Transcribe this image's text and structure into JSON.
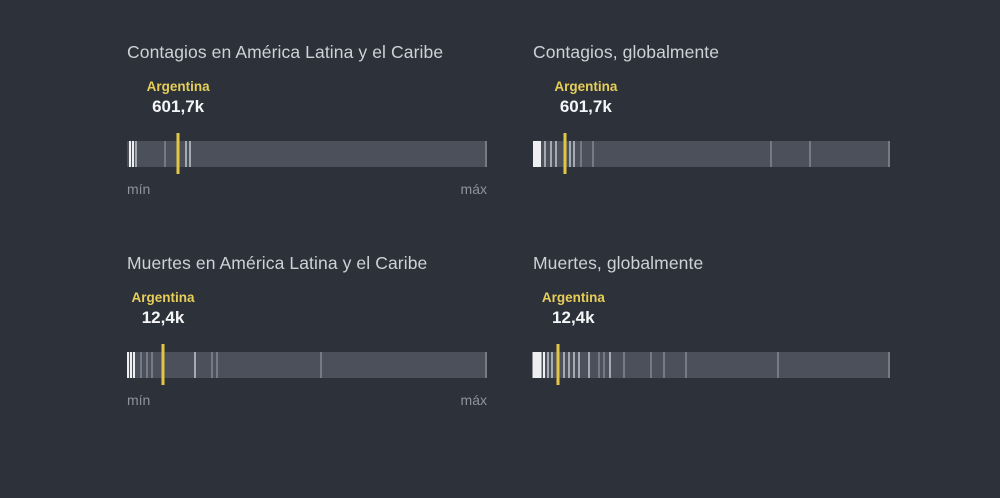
{
  "page": {
    "background_color": "#2c313a",
    "accent_color": "#e4c645",
    "strip_color": "#4b505a",
    "title_color": "#cdd2d7",
    "axis_label_color": "#8e949c"
  },
  "chart_data": [
    {
      "type": "strip",
      "title": "Contagios en América Latina y el Caribe",
      "highlight": {
        "name": "Argentina",
        "value": "601,7k"
      },
      "marker_pct": 14.2,
      "label_center_pct": 14.2,
      "axis": {
        "min": "mín",
        "max": "máx"
      },
      "ticks": [
        [
          0.8,
          "bright",
          2
        ],
        [
          1.7,
          "bright",
          2
        ],
        [
          2.6,
          "light",
          2
        ],
        [
          10.6,
          "mid",
          2
        ],
        [
          16.4,
          "light",
          2
        ],
        [
          17.6,
          "light",
          2
        ],
        [
          99.6,
          "mid",
          2
        ]
      ]
    },
    {
      "type": "strip",
      "title": "Contagios, globalmente",
      "highlight": {
        "name": "Argentina",
        "value": "601,7k"
      },
      "marker_pct": 9.0,
      "label_center_pct": 14.8,
      "axis": null,
      "ticks": [
        [
          1.1,
          "bright",
          8
        ],
        [
          3.4,
          "light",
          2
        ],
        [
          5.0,
          "light",
          2
        ],
        [
          6.4,
          "light",
          2
        ],
        [
          10.4,
          "light",
          2
        ],
        [
          11.4,
          "light",
          2
        ],
        [
          13.4,
          "mid",
          2
        ],
        [
          16.8,
          "mid",
          2
        ],
        [
          66.7,
          "mid",
          2
        ],
        [
          77.6,
          "mid",
          2
        ],
        [
          99.6,
          "mid",
          2
        ]
      ]
    },
    {
      "type": "strip",
      "title": "Muertes en América Latina y el Caribe",
      "highlight": {
        "name": "Argentina",
        "value": "12,4k"
      },
      "marker_pct": 10.0,
      "label_center_pct": 10.0,
      "axis": {
        "min": "mín",
        "max": "máx"
      },
      "ticks": [
        [
          0.4,
          "bright",
          2
        ],
        [
          1.2,
          "bright",
          2
        ],
        [
          2.0,
          "bright",
          2
        ],
        [
          3.9,
          "mid",
          2
        ],
        [
          5.6,
          "mid",
          2
        ],
        [
          6.9,
          "mid",
          2
        ],
        [
          18.9,
          "light",
          2
        ],
        [
          23.7,
          "mid",
          2
        ],
        [
          25.1,
          "mid",
          2
        ],
        [
          54.0,
          "mid",
          2
        ],
        [
          99.6,
          "mid",
          2
        ]
      ]
    },
    {
      "type": "strip",
      "title": "Muertes, globalmente",
      "highlight": {
        "name": "Argentina",
        "value": "12,4k"
      },
      "marker_pct": 7.0,
      "label_center_pct": 11.3,
      "axis": null,
      "ticks": [
        [
          1.2,
          "bright",
          9
        ],
        [
          3.1,
          "bright",
          2
        ],
        [
          4.2,
          "light",
          2
        ],
        [
          5.3,
          "light",
          2
        ],
        [
          8.7,
          "light",
          2
        ],
        [
          10.1,
          "light",
          2
        ],
        [
          11.5,
          "light",
          2
        ],
        [
          12.9,
          "light",
          2
        ],
        [
          15.7,
          "light",
          2
        ],
        [
          18.5,
          "mid",
          2
        ],
        [
          19.9,
          "mid",
          2
        ],
        [
          21.6,
          "light",
          2
        ],
        [
          25.5,
          "mid",
          2
        ],
        [
          33.1,
          "mid",
          2
        ],
        [
          36.7,
          "mid",
          2
        ],
        [
          42.9,
          "mid",
          2
        ],
        [
          68.6,
          "mid",
          2
        ],
        [
          99.6,
          "mid",
          2
        ]
      ]
    }
  ]
}
